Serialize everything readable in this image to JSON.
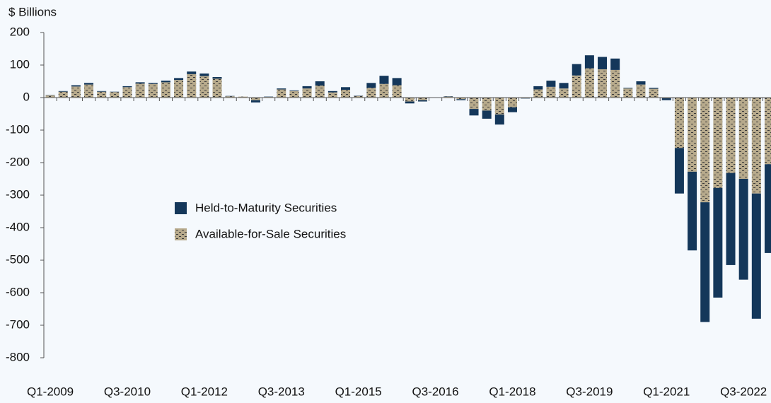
{
  "chart_data": {
    "type": "bar",
    "stacked": true,
    "y_axis_label": "$ Billions",
    "categories": [
      "Q1-2009",
      null,
      null,
      null,
      null,
      null,
      "Q3-2010",
      null,
      null,
      null,
      null,
      null,
      "Q1-2012",
      null,
      null,
      null,
      null,
      null,
      "Q3-2013",
      null,
      null,
      null,
      null,
      null,
      "Q1-2015",
      null,
      null,
      null,
      null,
      null,
      "Q3-2016",
      null,
      null,
      null,
      null,
      null,
      "Q1-2018",
      null,
      null,
      null,
      null,
      null,
      "Q3-2019",
      null,
      null,
      null,
      null,
      null,
      "Q1-2021",
      null,
      null,
      null,
      null,
      null,
      "Q3-2022",
      null,
      null
    ],
    "series": [
      {
        "name": "Available-for-Sale Securities",
        "color": "#b7aa8c",
        "pattern": "dashes",
        "values": [
          7,
          18,
          34,
          40,
          18,
          17,
          32,
          43,
          42,
          47,
          54,
          72,
          66,
          58,
          4,
          3,
          -8,
          2,
          25,
          20,
          28,
          37,
          16,
          24,
          5,
          30,
          42,
          38,
          -12,
          -8,
          0,
          3,
          -5,
          -35,
          -40,
          -52,
          -30,
          -2,
          25,
          33,
          28,
          68,
          90,
          87,
          85,
          28,
          40,
          27,
          -2,
          -155,
          -228,
          -322,
          -278,
          -232,
          -250,
          -295,
          -205
        ]
      },
      {
        "name": "Held-to-Maturity Securities",
        "color": "#14375a",
        "values": [
          1,
          2,
          4,
          5,
          2,
          1,
          3,
          4,
          3,
          5,
          6,
          8,
          8,
          5,
          1,
          0,
          -7,
          1,
          3,
          2,
          7,
          13,
          4,
          8,
          1,
          15,
          25,
          22,
          -6,
          -4,
          0,
          1,
          -3,
          -20,
          -25,
          -31,
          -15,
          -1,
          10,
          19,
          17,
          35,
          40,
          38,
          35,
          2,
          10,
          3,
          -6,
          -140,
          -242,
          -368,
          -337,
          -283,
          -310,
          -385,
          -273
        ]
      }
    ],
    "legend_order": [
      1,
      0
    ],
    "ylim": [
      -800,
      200
    ],
    "yticks": [
      -800,
      -700,
      -600,
      -500,
      -400,
      -300,
      -200,
      -100,
      0,
      100,
      200
    ],
    "grid": false
  }
}
